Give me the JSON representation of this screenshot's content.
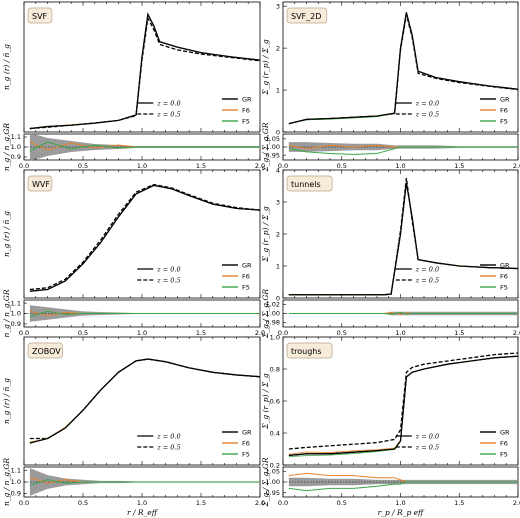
{
  "colors": {
    "GR": "#000000",
    "F6": "#e8822a",
    "F5": "#3aa64a",
    "band": "#8a8a8a",
    "badge_bg": "#f6ecd9"
  },
  "legend": {
    "models": [
      "GR",
      "F6",
      "F5"
    ],
    "redshift_labels": [
      "z = 0.0",
      "z = 0.5"
    ],
    "redshift_styles": [
      "solid",
      "dashed"
    ]
  },
  "xlabels": {
    "left": "r / R_eff",
    "right": "r_p / R_p eff"
  },
  "chart_data": [
    {
      "type": "line",
      "id": "svf",
      "title": "SVF",
      "ylabel": "n_g (r) / n̄_g",
      "ratio_ylabel": "n_g / n_g,GR",
      "xlim": [
        0,
        2.0
      ],
      "xticks": [
        "0.0",
        "0.5",
        "1.0",
        "1.5",
        "2.0"
      ],
      "ylim": [
        0.0,
        1.9
      ],
      "yticks": [],
      "ratio_ylim": [
        0.87,
        1.13
      ],
      "ratio_yticks": [
        "0.9",
        "1.0",
        "1.1"
      ],
      "x": [
        0.05,
        0.2,
        0.4,
        0.6,
        0.8,
        0.95,
        1.0,
        1.05,
        1.1,
        1.15,
        1.3,
        1.5,
        1.75,
        2.0
      ],
      "series": [
        {
          "name": "GR",
          "z": "0.0",
          "values": [
            0.05,
            0.08,
            0.1,
            0.13,
            0.17,
            0.25,
            1.1,
            1.72,
            1.55,
            1.32,
            1.24,
            1.16,
            1.1,
            1.05
          ]
        },
        {
          "name": "GR",
          "z": "0.5",
          "values": [
            0.05,
            0.07,
            0.1,
            0.13,
            0.17,
            0.24,
            1.05,
            1.66,
            1.5,
            1.28,
            1.2,
            1.14,
            1.09,
            1.04
          ]
        }
      ],
      "ratio": {
        "band_upper": [
          1.14,
          1.09,
          1.06,
          1.03,
          1.02,
          1.01,
          1.01,
          1.01,
          1.01,
          1.01,
          1.01,
          1.01,
          1.01,
          1.01
        ],
        "band_lower": [
          0.86,
          0.91,
          0.95,
          0.97,
          0.98,
          0.99,
          0.99,
          0.99,
          0.99,
          0.99,
          0.99,
          0.99,
          0.99,
          0.99
        ],
        "F6": [
          1.05,
          0.97,
          1.04,
          0.99,
          1.02,
          1.0,
          1.0,
          1.0,
          1.0,
          1.0,
          1.0,
          1.0,
          1.0,
          1.0
        ],
        "F5": [
          0.96,
          1.05,
          0.98,
          1.02,
          0.99,
          1.0,
          1.0,
          1.0,
          1.0,
          1.0,
          1.0,
          1.0,
          1.0,
          1.0
        ]
      }
    },
    {
      "type": "line",
      "id": "svf2d",
      "title": "SVF_2D",
      "ylabel": "Σ_g (r_p) / Σ̄_g",
      "ratio_ylabel": "Σ_g / Σ_g,GR",
      "xlim": [
        0,
        2.0
      ],
      "xticks": [
        "0.0",
        "0.5",
        "1.0",
        "1.5",
        "2.0"
      ],
      "ylim": [
        0.0,
        3.1
      ],
      "yticks": [
        "0",
        "1",
        "2",
        "3"
      ],
      "ratio_ylim": [
        0.92,
        1.08
      ],
      "ratio_yticks": [
        "0.95",
        "1.00",
        "1.05"
      ],
      "x": [
        0.05,
        0.2,
        0.4,
        0.6,
        0.8,
        0.95,
        1.0,
        1.05,
        1.1,
        1.15,
        1.3,
        1.5,
        1.75,
        2.0
      ],
      "series": [
        {
          "name": "GR",
          "z": "0.0",
          "values": [
            0.2,
            0.3,
            0.32,
            0.35,
            0.38,
            0.45,
            2.0,
            2.85,
            2.3,
            1.45,
            1.3,
            1.2,
            1.1,
            1.02
          ]
        },
        {
          "name": "GR",
          "z": "0.5",
          "values": [
            0.2,
            0.3,
            0.32,
            0.35,
            0.38,
            0.44,
            1.95,
            2.8,
            2.25,
            1.4,
            1.28,
            1.18,
            1.09,
            1.01
          ]
        }
      ],
      "ratio": {
        "band_upper": [
          1.03,
          1.03,
          1.025,
          1.02,
          1.02,
          1.01,
          1.01,
          1.01,
          1.01,
          1.01,
          1.01,
          1.005,
          1.005,
          1.005
        ],
        "band_lower": [
          0.97,
          0.97,
          0.975,
          0.98,
          0.98,
          0.99,
          0.99,
          0.99,
          0.99,
          0.99,
          0.99,
          0.995,
          0.995,
          0.995
        ],
        "F6": [
          1.01,
          0.99,
          1.01,
          1.0,
          1.01,
          1.0,
          1.0,
          1.0,
          1.0,
          1.0,
          1.0,
          1.0,
          1.0,
          1.0
        ],
        "F5": [
          0.99,
          0.97,
          0.96,
          0.955,
          0.96,
          0.99,
          1.0,
          1.0,
          1.0,
          1.0,
          1.0,
          1.0,
          1.0,
          1.0
        ]
      }
    },
    {
      "type": "line",
      "id": "wvf",
      "title": "WVF",
      "ylabel": "n_g (r) / n̄_g",
      "ratio_ylabel": "n_g / n_g,GR",
      "xlim": [
        0,
        2.0
      ],
      "xticks": [
        "0.0",
        "0.5",
        "1.0",
        "1.5",
        "2.0"
      ],
      "ylim": [
        0.0,
        1.5
      ],
      "yticks": [],
      "ratio_ylim": [
        0.87,
        1.13
      ],
      "ratio_yticks": [
        "0.9",
        "1.0",
        "1.1"
      ],
      "x": [
        0.05,
        0.2,
        0.35,
        0.5,
        0.65,
        0.8,
        0.95,
        1.1,
        1.25,
        1.4,
        1.6,
        1.8,
        2.0
      ],
      "series": [
        {
          "name": "GR",
          "z": "0.0",
          "values": [
            0.08,
            0.1,
            0.2,
            0.4,
            0.65,
            0.95,
            1.22,
            1.32,
            1.28,
            1.2,
            1.1,
            1.05,
            1.03
          ]
        },
        {
          "name": "GR",
          "z": "0.5",
          "values": [
            0.1,
            0.12,
            0.22,
            0.42,
            0.68,
            0.98,
            1.24,
            1.33,
            1.29,
            1.21,
            1.11,
            1.06,
            1.03
          ]
        }
      ],
      "ratio": {
        "band_upper": [
          1.08,
          1.06,
          1.04,
          1.02,
          1.015,
          1.01,
          1.005,
          1.005,
          1.005,
          1.005,
          1.005,
          1.005,
          1.005
        ],
        "band_lower": [
          0.92,
          0.94,
          0.96,
          0.98,
          0.985,
          0.99,
          0.995,
          0.995,
          0.995,
          0.995,
          0.995,
          0.995,
          0.995
        ],
        "F6": [
          1.02,
          0.98,
          1.01,
          1.0,
          1.0,
          1.0,
          1.0,
          1.0,
          1.0,
          1.0,
          1.0,
          1.0,
          1.0
        ],
        "F5": [
          0.97,
          1.02,
          0.99,
          1.0,
          1.0,
          1.0,
          1.0,
          1.0,
          1.0,
          1.0,
          1.0,
          1.0,
          1.0
        ]
      }
    },
    {
      "type": "line",
      "id": "tunnels",
      "title": "tunnels",
      "ylabel": "Σ_g (r_p) / Σ̄_g",
      "ratio_ylabel": "Σ_g / Σ_g,GR",
      "xlim": [
        0,
        2.0
      ],
      "xticks": [
        "0.0",
        "0.5",
        "1.0",
        "1.5",
        "2.0"
      ],
      "ylim": [
        0.0,
        4.0
      ],
      "yticks": [
        "0",
        "1",
        "2",
        "3",
        "4"
      ],
      "ratio_ylim": [
        0.97,
        1.03
      ],
      "ratio_yticks": [
        "0.98",
        "1.00",
        "1.02"
      ],
      "x": [
        0.05,
        0.3,
        0.6,
        0.85,
        0.92,
        1.0,
        1.05,
        1.1,
        1.15,
        1.3,
        1.5,
        1.75,
        2.0
      ],
      "series": [
        {
          "name": "GR",
          "z": "0.0",
          "values": [
            0.1,
            0.1,
            0.1,
            0.1,
            0.12,
            2.0,
            3.6,
            2.5,
            1.2,
            1.1,
            1.0,
            0.95,
            0.92
          ]
        },
        {
          "name": "GR",
          "z": "0.5",
          "values": [
            0.1,
            0.1,
            0.1,
            0.1,
            0.12,
            2.1,
            3.75,
            2.4,
            1.2,
            1.1,
            1.0,
            0.95,
            0.92
          ]
        }
      ],
      "ratio": {
        "band_upper": [
          1.0,
          1.0,
          1.0,
          1.0,
          1.004,
          1.004,
          1.004,
          1.004,
          1.004,
          1.004,
          1.004,
          1.004,
          1.004
        ],
        "band_lower": [
          1.0,
          1.0,
          1.0,
          1.0,
          0.996,
          0.996,
          0.996,
          0.996,
          0.996,
          0.996,
          0.996,
          0.996,
          0.996
        ],
        "F6": [
          1.0,
          1.0,
          1.0,
          1.0,
          1.002,
          0.998,
          1.001,
          1.0,
          1.0,
          1.0,
          1.0,
          1.0,
          1.0
        ],
        "F5": [
          1.0,
          1.0,
          1.0,
          1.0,
          0.999,
          1.002,
          0.999,
          1.0,
          1.0,
          1.0,
          1.0,
          1.0,
          1.0
        ]
      }
    },
    {
      "type": "line",
      "id": "zobov",
      "title": "ZOBOV",
      "ylabel": "n_g (r) / n̄_g",
      "ratio_ylabel": "n_g / n_g,GR",
      "xlim": [
        0,
        2.0
      ],
      "xticks": [
        "0.0",
        "0.5",
        "1.0",
        "1.5",
        "2.0"
      ],
      "ylim": [
        0.0,
        1.45
      ],
      "yticks": [],
      "ratio_ylim": [
        0.87,
        1.13
      ],
      "ratio_yticks": [
        "0.9",
        "1.0",
        "1.1"
      ],
      "x": [
        0.05,
        0.2,
        0.35,
        0.5,
        0.65,
        0.8,
        0.95,
        1.05,
        1.2,
        1.4,
        1.6,
        1.8,
        2.0
      ],
      "series": [
        {
          "name": "GR",
          "z": "0.0",
          "values": [
            0.25,
            0.3,
            0.42,
            0.62,
            0.85,
            1.05,
            1.18,
            1.2,
            1.17,
            1.1,
            1.05,
            1.02,
            1.0
          ]
        },
        {
          "name": "GR",
          "z": "0.5",
          "values": [
            0.3,
            0.3,
            0.42,
            0.62,
            0.85,
            1.05,
            1.18,
            1.2,
            1.17,
            1.1,
            1.05,
            1.02,
            1.0
          ]
        }
      ],
      "ratio": {
        "band_upper": [
          1.12,
          1.06,
          1.03,
          1.02,
          1.01,
          1.01,
          1.005,
          1.005,
          1.005,
          1.005,
          1.005,
          1.005,
          1.005
        ],
        "band_lower": [
          0.88,
          0.94,
          0.97,
          0.98,
          0.99,
          0.99,
          0.995,
          0.995,
          0.995,
          0.995,
          0.995,
          0.995,
          0.995
        ],
        "F6": [
          1.04,
          0.99,
          1.02,
          1.0,
          1.0,
          1.0,
          1.0,
          1.0,
          1.0,
          1.0,
          1.0,
          1.0,
          1.0
        ],
        "F5": [
          0.97,
          1.02,
          0.99,
          1.0,
          1.0,
          1.0,
          1.0,
          1.0,
          1.0,
          1.0,
          1.0,
          1.0,
          1.0
        ]
      }
    },
    {
      "type": "line",
      "id": "troughs",
      "title": "troughs",
      "ylabel": "Σ_g (r_p) / Σ̄_g",
      "ratio_ylabel": "Σ_g / Σ_g,GR",
      "xlim": [
        0,
        2.0
      ],
      "xticks": [
        "0.0",
        "0.5",
        "1.0",
        "1.5",
        "2.0"
      ],
      "ylim": [
        0.2,
        1.0
      ],
      "yticks": [
        "0.2",
        "0.4",
        "0.6",
        "0.8",
        "1.0"
      ],
      "ratio_ylim": [
        0.93,
        1.07
      ],
      "ratio_yticks": [
        "0.95",
        "1.00",
        "1.05"
      ],
      "x": [
        0.05,
        0.2,
        0.4,
        0.6,
        0.8,
        0.95,
        1.0,
        1.05,
        1.1,
        1.2,
        1.4,
        1.6,
        1.8,
        2.0
      ],
      "series": [
        {
          "name": "GR",
          "z": "0.0",
          "values": [
            0.26,
            0.27,
            0.27,
            0.28,
            0.29,
            0.3,
            0.35,
            0.75,
            0.78,
            0.8,
            0.83,
            0.85,
            0.87,
            0.88
          ]
        },
        {
          "name": "GR",
          "z": "0.5",
          "values": [
            0.3,
            0.31,
            0.32,
            0.33,
            0.34,
            0.36,
            0.42,
            0.78,
            0.81,
            0.83,
            0.85,
            0.87,
            0.89,
            0.9
          ]
        }
      ],
      "ratio": {
        "band_upper": [
          1.02,
          1.02,
          1.015,
          1.015,
          1.01,
          1.01,
          1.01,
          1.01,
          1.01,
          1.01,
          1.01,
          1.01,
          1.01,
          1.01
        ],
        "band_lower": [
          0.98,
          0.98,
          0.985,
          0.985,
          0.99,
          0.99,
          0.99,
          0.99,
          0.99,
          0.99,
          0.99,
          0.99,
          0.99,
          0.99
        ],
        "F6": [
          1.03,
          1.04,
          1.03,
          1.03,
          1.02,
          1.02,
          1.01,
          1.0,
          1.0,
          1.0,
          1.0,
          1.0,
          1.0,
          1.0
        ],
        "F5": [
          0.97,
          0.96,
          0.97,
          0.97,
          0.98,
          0.99,
          0.99,
          1.0,
          1.0,
          1.0,
          1.0,
          1.0,
          1.0,
          1.0
        ]
      }
    }
  ]
}
